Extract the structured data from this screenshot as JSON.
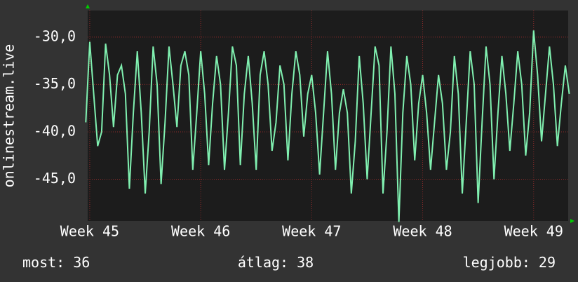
{
  "chart_data": {
    "type": "line",
    "y_label": "onlinestream.live",
    "x": [
      -0.25,
      0,
      0.25,
      0.5,
      0.75,
      1,
      1.25,
      1.5,
      1.75,
      2,
      2.25,
      2.5,
      2.75,
      3,
      3.25,
      3.5,
      3.75,
      4,
      4.25,
      4.5,
      4.75,
      5,
      5.25,
      5.5,
      5.75,
      6,
      6.25,
      6.5,
      6.75,
      7,
      7.25,
      7.5,
      7.75,
      8,
      8.25,
      8.5,
      8.75,
      9,
      9.25,
      9.5,
      9.75,
      10,
      10.25,
      10.5,
      10.75,
      11,
      11.25,
      11.5,
      11.75,
      12,
      12.25,
      12.5,
      12.75,
      13,
      13.25,
      13.5,
      13.75,
      14,
      14.25,
      14.5,
      14.75,
      15,
      15.25,
      15.5,
      15.75,
      16,
      16.25,
      16.5,
      16.75,
      17,
      17.25,
      17.5,
      17.75,
      18,
      18.25,
      18.5,
      18.75,
      19,
      19.25,
      19.5,
      19.75,
      20,
      20.25,
      20.5,
      20.75,
      21,
      21.25,
      21.5,
      21.75,
      22,
      22.25,
      22.5,
      22.75,
      23,
      23.25,
      23.5,
      23.75,
      24,
      24.25,
      24.5,
      24.75,
      25,
      25.25,
      25.5,
      25.75,
      26,
      26.25,
      26.5,
      26.75,
      27,
      27.25,
      27.5,
      27.75,
      28,
      28.25,
      28.5,
      28.75,
      29,
      29.25,
      29.5,
      29.75,
      30,
      30.25
    ],
    "series": [
      {
        "color": "#80f0b0",
        "values": [
          -39,
          -30.5,
          -36,
          -41.5,
          -40,
          -30.7,
          -34,
          -39.5,
          -34,
          -33,
          -36,
          -46,
          -38,
          -31.5,
          -38,
          -46.5,
          -40,
          -31,
          -35,
          -45.5,
          -39,
          -31,
          -35,
          -39.5,
          -33,
          -31.5,
          -34,
          -44,
          -38,
          -31.5,
          -36,
          -43.5,
          -37,
          -32,
          -35,
          -44,
          -38,
          -31,
          -33,
          -43.5,
          -36,
          -32,
          -37,
          -44,
          -34,
          -31.5,
          -35,
          -42,
          -39,
          -33,
          -35,
          -43,
          -36,
          -31.5,
          -34,
          -40.5,
          -36,
          -34,
          -38,
          -44.5,
          -38,
          -31.5,
          -36,
          -44,
          -38,
          -35.5,
          -38,
          -46.5,
          -41,
          -32,
          -37,
          -45,
          -38,
          -31,
          -33,
          -46.5,
          -40,
          -31,
          -36,
          -49.5,
          -38,
          -32,
          -35,
          -43,
          -37,
          -34,
          -38,
          -44,
          -39,
          -34,
          -37,
          -44,
          -40,
          -32,
          -36,
          -46.5,
          -39,
          -31.5,
          -35,
          -47.5,
          -39,
          -31,
          -35,
          -45,
          -38,
          -32,
          -36,
          -42,
          -37,
          -31.5,
          -35,
          -42.5,
          -38,
          -29.3,
          -34,
          -41,
          -36,
          -31,
          -35,
          -41.5,
          -37,
          -33,
          -36
        ]
      }
    ],
    "xlim": [
      -0.13,
      30.18
    ],
    "xticks": [
      {
        "value": 0,
        "label": "Week 45"
      },
      {
        "value": 7,
        "label": "Week 46"
      },
      {
        "value": 14,
        "label": "Week 47"
      },
      {
        "value": 21,
        "label": "Week 48"
      },
      {
        "value": 28,
        "label": "Week 49"
      }
    ],
    "ylim": [
      -49.4,
      -27.2
    ],
    "yticks": [
      {
        "value": -30,
        "label": "-30,0"
      },
      {
        "value": -35,
        "label": "-35,0"
      },
      {
        "value": -40,
        "label": "-40,0"
      },
      {
        "value": -45,
        "label": "-45,0"
      }
    ],
    "grid": true,
    "stats": [
      {
        "label": "most:",
        "value": 36
      },
      {
        "label": "átlag:",
        "value": 38
      },
      {
        "label": "legjobb:",
        "value": 29
      }
    ]
  }
}
